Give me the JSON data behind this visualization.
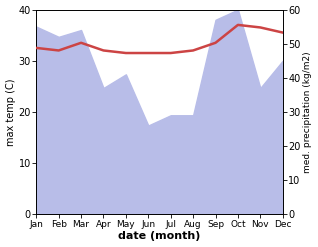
{
  "months": [
    "Jan",
    "Feb",
    "Mar",
    "Apr",
    "May",
    "Jun",
    "Jul",
    "Aug",
    "Sep",
    "Oct",
    "Nov",
    "Dec"
  ],
  "month_indices": [
    1,
    2,
    3,
    4,
    5,
    6,
    7,
    8,
    9,
    10,
    11,
    12
  ],
  "temp_max": [
    32.5,
    32.0,
    33.5,
    32.0,
    31.5,
    31.5,
    31.5,
    32.0,
    33.5,
    37.0,
    36.5,
    35.5
  ],
  "precipitation": [
    55,
    52,
    54,
    37,
    41,
    26,
    29,
    29,
    57,
    60,
    37,
    45
  ],
  "temp_ylim": [
    0,
    40
  ],
  "precip_ylim": [
    0,
    60
  ],
  "temp_color": "#cc4444",
  "precip_fill_color": "#b8bde8",
  "xlabel": "date (month)",
  "ylabel_left": "max temp (C)",
  "ylabel_right": "med. precipitation (kg/m2)",
  "bg_color": "#ffffff",
  "temp_linewidth": 1.8
}
